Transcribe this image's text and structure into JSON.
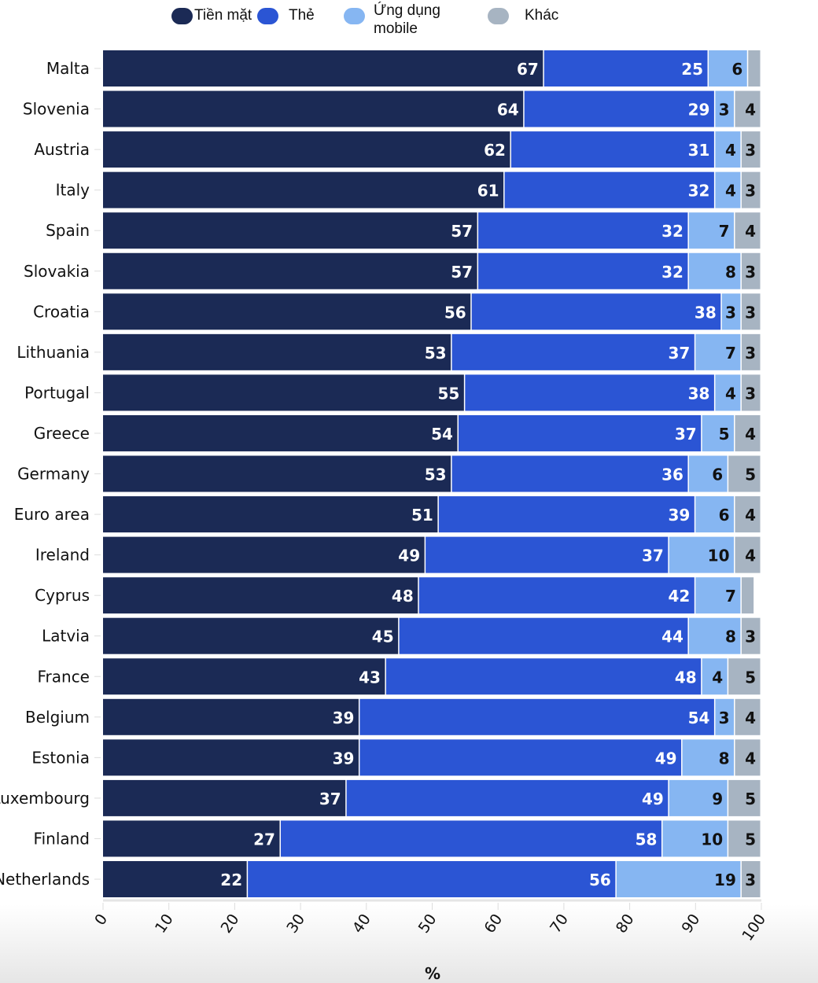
{
  "chart_data": {
    "type": "bar",
    "orientation": "horizontal",
    "stacked": true,
    "categories": [
      "Malta",
      "Slovenia",
      "Austria",
      "Italy",
      "Spain",
      "Slovakia",
      "Croatia",
      "Lithuania",
      "Portugal",
      "Greece",
      "Germany",
      "Euro area",
      "Ireland",
      "Cyprus",
      "Latvia",
      "France",
      "Belgium",
      "Estonia",
      "Luxembourg",
      "Finland",
      "Netherlands"
    ],
    "series": [
      {
        "name": "Tiền mặt",
        "color": "#1b2a55",
        "values": [
          67,
          64,
          62,
          61,
          57,
          57,
          56,
          53,
          55,
          54,
          53,
          51,
          49,
          48,
          45,
          43,
          39,
          39,
          37,
          27,
          22
        ]
      },
      {
        "name": "Thẻ",
        "color": "#2b55d4",
        "values": [
          25,
          29,
          31,
          32,
          32,
          32,
          38,
          37,
          38,
          37,
          36,
          39,
          37,
          42,
          44,
          48,
          54,
          49,
          49,
          58,
          56
        ]
      },
      {
        "name": "Ứng dụng mobile",
        "color": "#86b6f2",
        "values": [
          6,
          3,
          4,
          4,
          7,
          8,
          3,
          7,
          4,
          5,
          6,
          6,
          10,
          7,
          8,
          4,
          3,
          8,
          9,
          10,
          19
        ]
      },
      {
        "name": "Khác",
        "color": "#a7b4c2",
        "values": [
          2,
          4,
          3,
          3,
          4,
          3,
          3,
          3,
          3,
          4,
          5,
          4,
          4,
          2,
          3,
          5,
          4,
          4,
          5,
          5,
          3
        ]
      }
    ],
    "hidden_labels": [
      [
        3,
        0
      ],
      [
        3,
        13
      ]
    ],
    "xlabel": "%",
    "xlim": [
      0,
      100
    ],
    "xticks": [
      "0",
      "10",
      "20",
      "30",
      "40",
      "50",
      "60",
      "70",
      "80",
      "90",
      "100"
    ],
    "legend_position": "top"
  }
}
